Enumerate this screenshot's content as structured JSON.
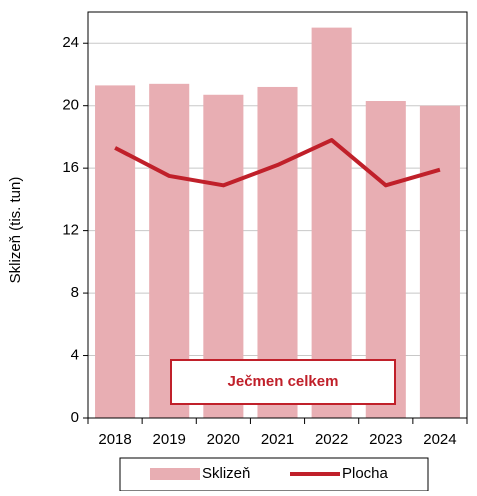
{
  "chart_data": {
    "type": "bar",
    "categories": [
      "2018",
      "2019",
      "2020",
      "2021",
      "2022",
      "2023",
      "2024"
    ],
    "series": [
      {
        "name": "Sklizeň",
        "type": "bar",
        "color": "#e8aeb3",
        "values": [
          21.3,
          21.4,
          20.7,
          21.2,
          25.0,
          20.3,
          20.0
        ]
      },
      {
        "name": "Plocha",
        "type": "line",
        "color": "#c0202a",
        "values": [
          17.3,
          15.5,
          14.9,
          16.2,
          17.8,
          14.9,
          15.9
        ]
      }
    ],
    "ylabel": "Sklizeň (tis. tun)",
    "annotation": "Ječmen celkem",
    "ylim": [
      0,
      26
    ],
    "yticks": [
      0,
      4,
      8,
      12,
      16,
      20,
      24
    ],
    "grid": true,
    "legend": "bottom"
  }
}
